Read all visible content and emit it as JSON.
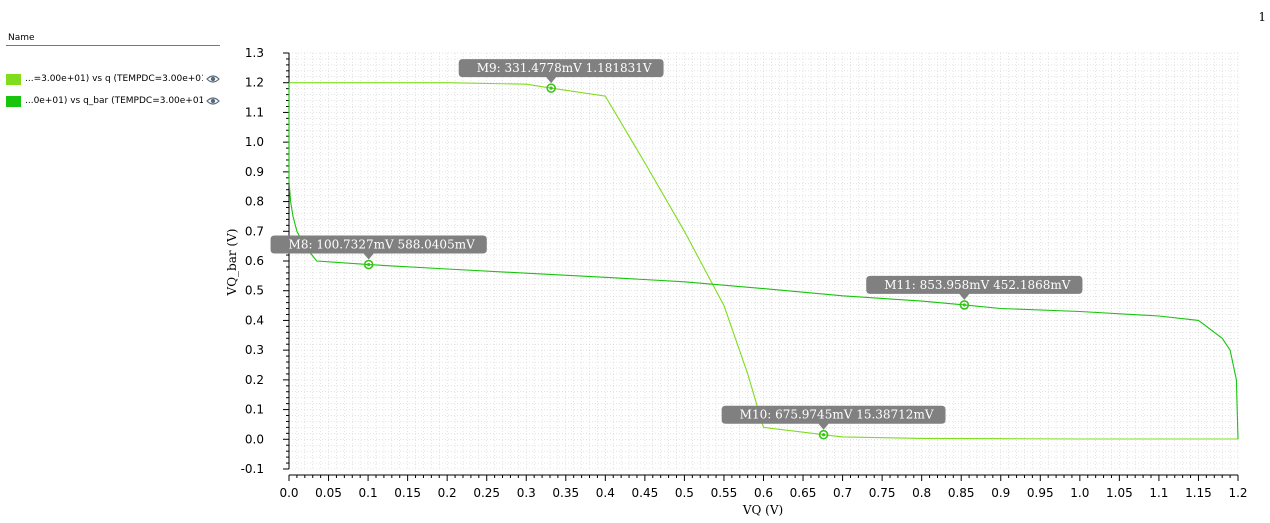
{
  "page_number": "1",
  "legend": {
    "header": "Name",
    "entries": [
      {
        "label": "...=3.00e+01) vs q (TEMPDC=3.00e+01)",
        "color": "#7fdc1e",
        "icon": "eye-icon"
      },
      {
        "label": "...0e+01) vs q_bar (TEMPDC=3.00e+01)",
        "color": "#18c40e",
        "icon": "eye-icon"
      }
    ]
  },
  "chart_data": {
    "type": "line",
    "xlabel": "VQ (V)",
    "ylabel": "VQ_bar (V)",
    "xlim": [
      0,
      1.2
    ],
    "ylim": [
      -0.1,
      1.3
    ],
    "grid": true,
    "x_ticks": [
      "0.0",
      "0.05",
      "0.1",
      "0.15",
      "0.2",
      "0.25",
      "0.3",
      "0.35",
      "0.4",
      "0.45",
      "0.5",
      "0.55",
      "0.6",
      "0.65",
      "0.7",
      "0.75",
      "0.8",
      "0.85",
      "0.9",
      "0.95",
      "1.0",
      "1.05",
      "1.1",
      "1.15",
      "1.2"
    ],
    "y_ticks": [
      "-0.1",
      "0.0",
      "0.1",
      "0.2",
      "0.3",
      "0.4",
      "0.5",
      "0.6",
      "0.7",
      "0.8",
      "0.9",
      "1.0",
      "1.1",
      "1.2",
      "1.3"
    ],
    "series": [
      {
        "color": "#7fdc1e",
        "points": [
          [
            0,
            1.2
          ],
          [
            0.1,
            1.2
          ],
          [
            0.2,
            1.2
          ],
          [
            0.3,
            1.195
          ],
          [
            0.331,
            1.1818
          ],
          [
            0.4,
            1.155
          ],
          [
            0.45,
            0.93
          ],
          [
            0.5,
            0.7
          ],
          [
            0.55,
            0.45
          ],
          [
            0.58,
            0.22
          ],
          [
            0.6,
            0.04
          ],
          [
            0.676,
            0.0154
          ],
          [
            0.7,
            0.008
          ],
          [
            0.8,
            0.003
          ],
          [
            0.9,
            0.002
          ],
          [
            1.0,
            0.001
          ],
          [
            1.1,
            0.001
          ],
          [
            1.2,
            0.001
          ]
        ]
      },
      {
        "color": "#18c40e",
        "points": [
          [
            0,
            1.2
          ],
          [
            0,
            0.87
          ],
          [
            0.002,
            0.8
          ],
          [
            0.005,
            0.75
          ],
          [
            0.01,
            0.7
          ],
          [
            0.02,
            0.65
          ],
          [
            0.035,
            0.6
          ],
          [
            0.1007,
            0.588
          ],
          [
            0.2,
            0.573
          ],
          [
            0.3,
            0.559
          ],
          [
            0.4,
            0.545
          ],
          [
            0.5,
            0.53
          ],
          [
            0.6,
            0.507
          ],
          [
            0.7,
            0.483
          ],
          [
            0.8,
            0.465
          ],
          [
            0.854,
            0.4522
          ],
          [
            0.9,
            0.44
          ],
          [
            1.0,
            0.43
          ],
          [
            1.1,
            0.415
          ],
          [
            1.15,
            0.4
          ],
          [
            1.18,
            0.34
          ],
          [
            1.19,
            0.3
          ],
          [
            1.198,
            0.2
          ],
          [
            1.2,
            0.0
          ]
        ]
      }
    ],
    "markers": [
      {
        "label": "M8: 100.7327mV 588.0405mV",
        "x": 0.1007327,
        "y": 0.5880405
      },
      {
        "label": "M9: 331.4778mV 1.181831V",
        "x": 0.3314778,
        "y": 1.181831
      },
      {
        "label": "M10: 675.9745mV 15.38712mV",
        "x": 0.6759745,
        "y": 0.01538712
      },
      {
        "label": "M11: 853.958mV 452.1868mV",
        "x": 0.853958,
        "y": 0.4521868
      }
    ]
  }
}
